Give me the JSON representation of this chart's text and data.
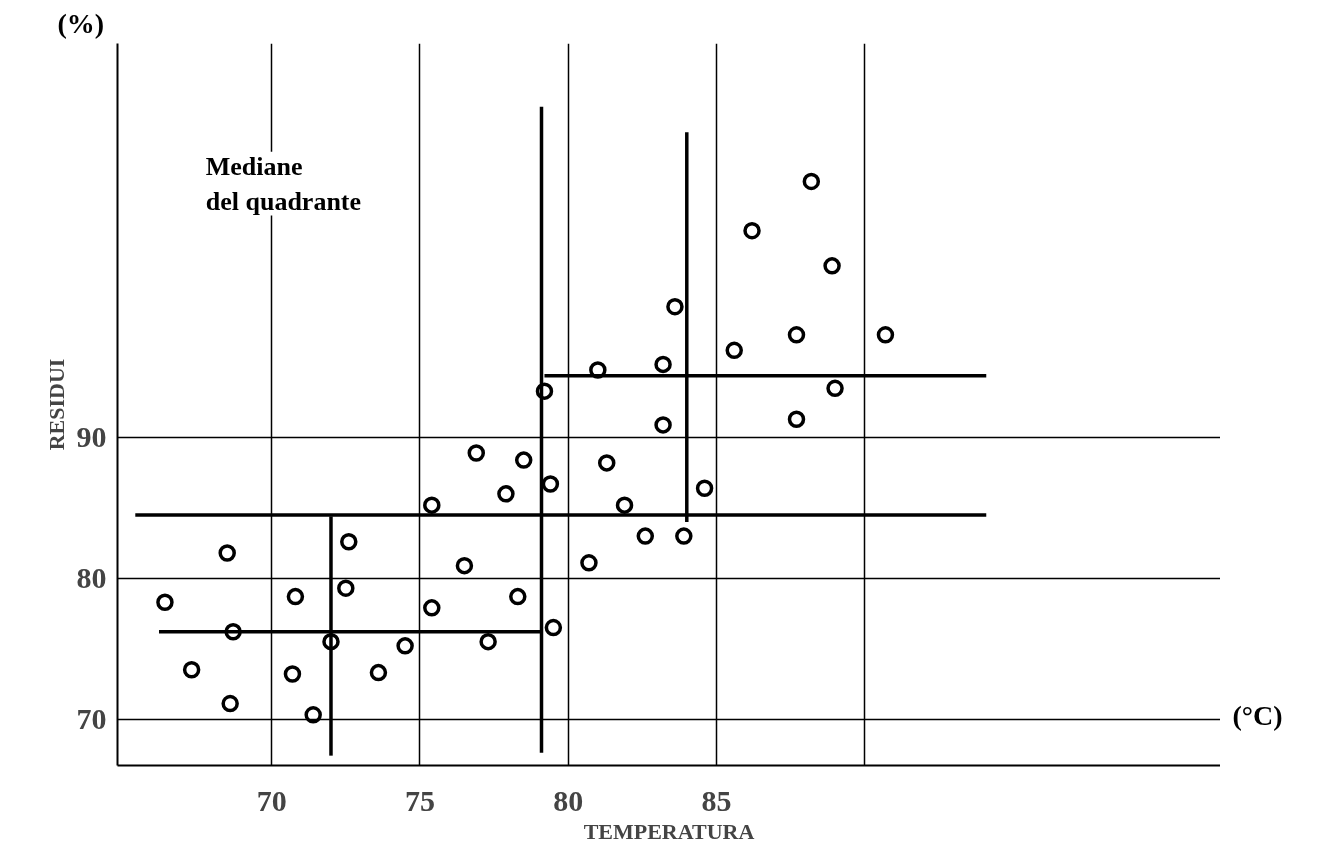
{
  "chart_data": {
    "type": "scatter",
    "xlabel": "TEMPERATURA",
    "ylabel": "RESIDUI",
    "annotations": [
      "Mediane del quadrante",
      "(%)",
      "(°C)"
    ],
    "xlim": [
      64.8,
      102
    ],
    "ylim": [
      66.7,
      118
    ],
    "xticks": [
      70,
      75,
      80,
      85,
      {
        "value": 90,
        "label": null
      }
    ],
    "yticks": [
      70,
      80,
      90
    ],
    "grid": true,
    "marker": "circle",
    "series": [
      {
        "color": "#000000",
        "x": [
          66.4,
          67.3,
          68.5,
          68.7,
          68.6,
          70.8,
          70.7,
          71.4,
          72.0,
          72.6,
          72.5,
          73.6,
          74.5,
          75.4,
          75.4,
          76.5,
          76.9,
          77.3,
          77.9,
          78.3,
          78.5,
          79.2,
          79.4,
          79.5,
          80.7,
          81.0,
          81.3,
          81.9,
          82.6,
          83.2,
          83.2,
          83.6,
          83.9,
          84.6,
          85.6,
          86.2,
          87.7,
          87.7,
          88.2,
          88.9,
          89.0,
          90.7
        ],
        "values": [
          78.3,
          73.5,
          81.8,
          76.2,
          71.1,
          78.7,
          73.2,
          70.3,
          75.5,
          82.6,
          79.3,
          73.3,
          75.2,
          77.9,
          85.2,
          80.9,
          88.9,
          75.5,
          86.0,
          78.7,
          88.4,
          93.3,
          86.7,
          76.5,
          81.1,
          94.8,
          88.2,
          85.2,
          83.0,
          95.2,
          90.9,
          99.3,
          83.0,
          86.4,
          96.2,
          104.7,
          97.3,
          91.3,
          108.2,
          102.2,
          93.5,
          97.3
        ]
      },
      {
        "type": "line",
        "marker": "none",
        "color": "#000000",
        "x": [
          66.2,
          79.1
        ],
        "values": [
          76.2,
          76.2
        ]
      },
      {
        "type": "line",
        "marker": "none",
        "color": "#000000",
        "x": [
          65.4,
          94.1
        ],
        "values": [
          84.5,
          84.5
        ]
      },
      {
        "type": "line",
        "marker": "none",
        "color": "#000000",
        "x": [
          79.2,
          94.1
        ],
        "values": [
          94.4,
          94.4
        ]
      },
      {
        "type": "line",
        "marker": "none",
        "color": "#000000",
        "x": [
          72.0,
          72.0
        ],
        "values": [
          84.4,
          67.4
        ]
      },
      {
        "type": "line",
        "marker": "none",
        "color": "#000000",
        "x": [
          79.1,
          79.1
        ],
        "values": [
          113.5,
          67.6
        ]
      },
      {
        "type": "line",
        "marker": "none",
        "color": "#000000",
        "x": [
          84.0,
          84.0
        ],
        "values": [
          111.7,
          84.0
        ]
      }
    ]
  }
}
